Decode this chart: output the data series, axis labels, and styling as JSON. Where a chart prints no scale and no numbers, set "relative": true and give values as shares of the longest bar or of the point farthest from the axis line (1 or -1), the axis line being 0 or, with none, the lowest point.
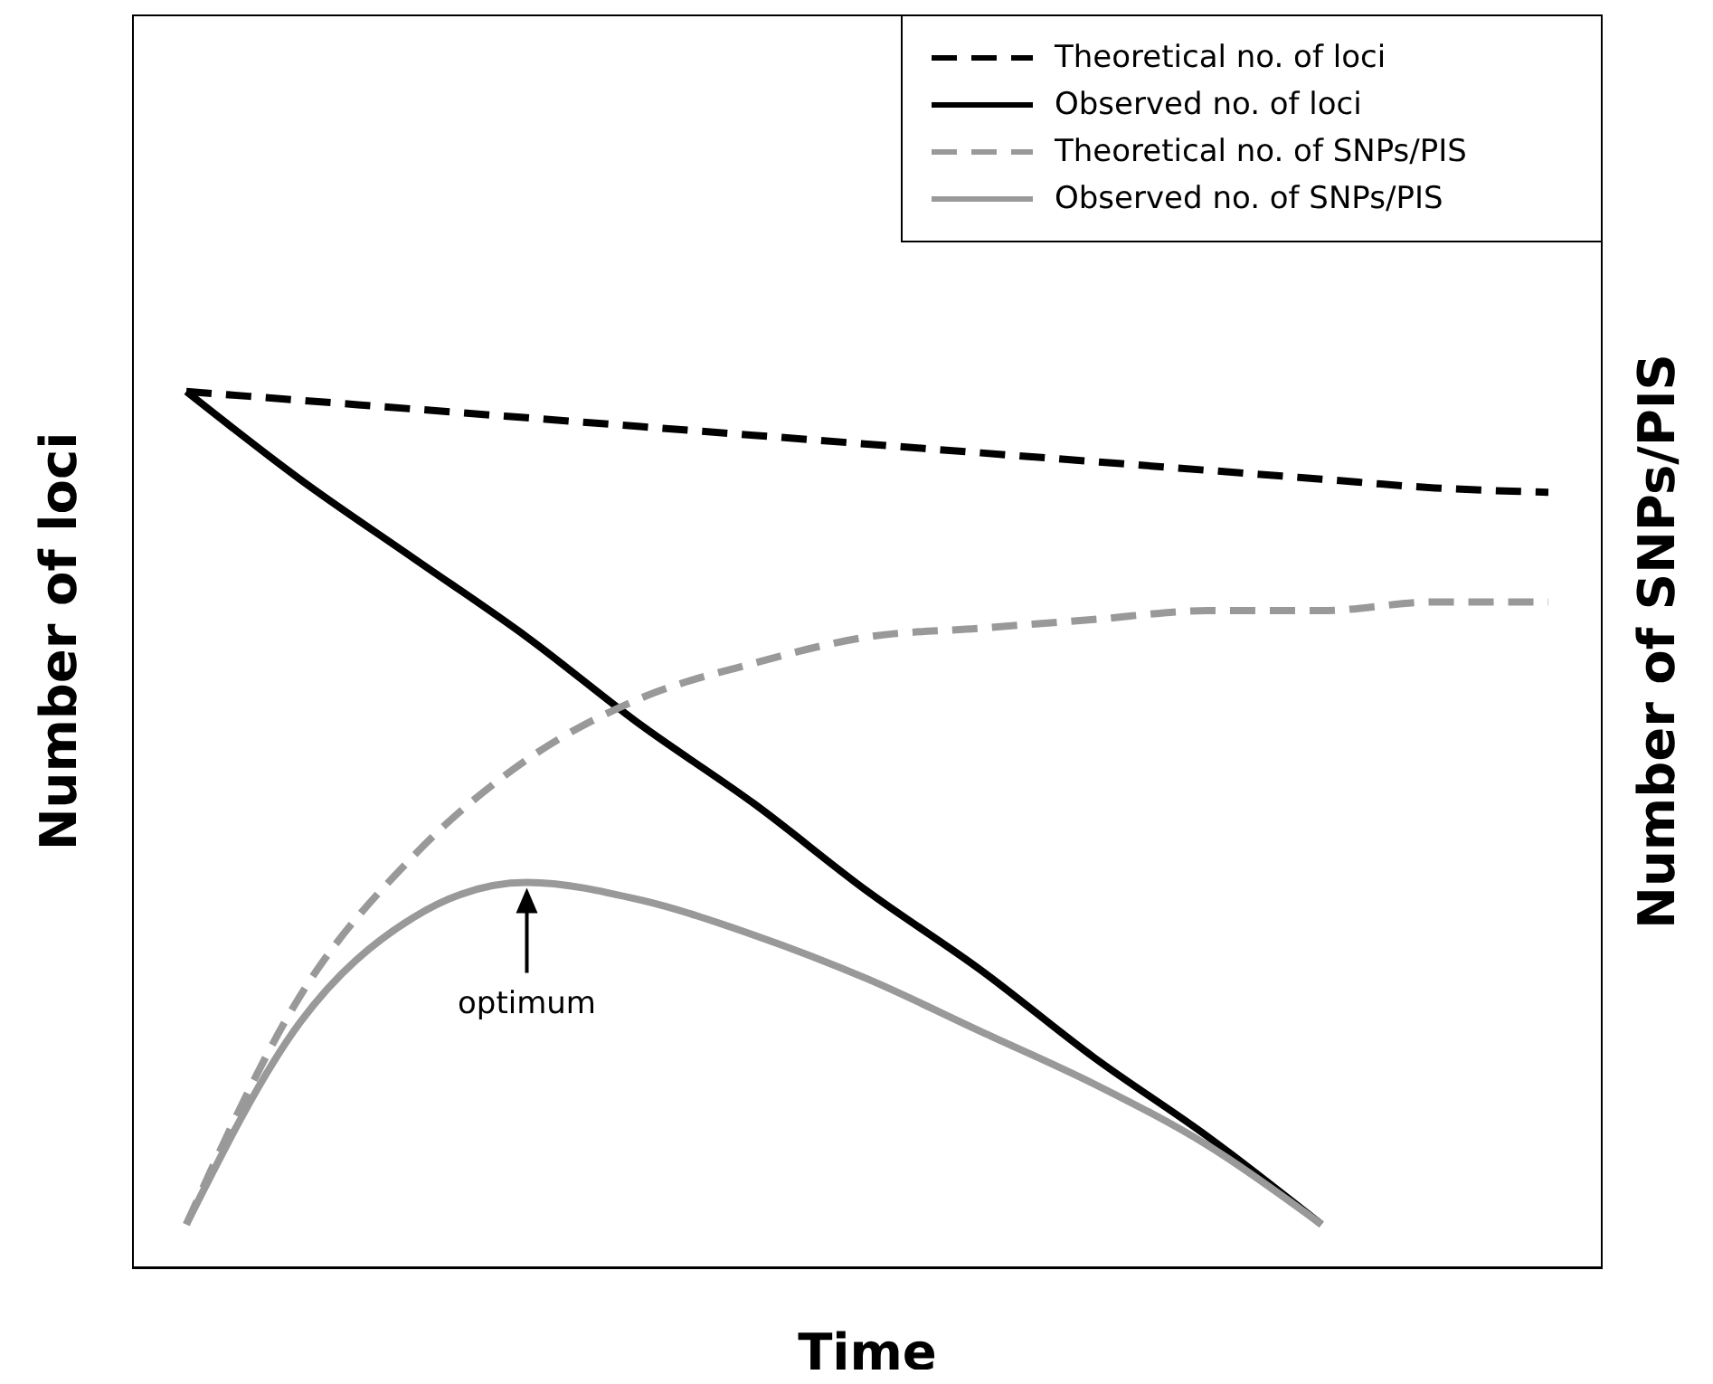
{
  "chart_data": {
    "type": "line",
    "relative": true,
    "xlabel": "Time",
    "ylabel": "Number of loci",
    "y2label": "Number of SNPs/PIS",
    "categories": [
      null,
      null,
      null,
      null,
      null,
      null,
      null,
      null,
      null,
      null,
      null,
      null,
      null
    ],
    "legend": "top right",
    "marker": "none",
    "annotations": [
      "optimum"
    ],
    "series": [
      {
        "name": "Theoretical no. of loci",
        "color": "#000000",
        "line_style": "dashed",
        "values": [
          1,
          0.99,
          0.98,
          0.97,
          0.96,
          0.95,
          0.94,
          0.93,
          0.92,
          0.91,
          0.9,
          0.89,
          0.885
        ]
      },
      {
        "name": "Observed no. of loci",
        "color": "#000000",
        "line_style": "solid",
        "values": [
          1,
          0.9,
          0.81,
          0.72,
          0.62,
          0.53,
          0.43,
          0.34,
          0.24,
          0.15,
          0.05,
          null,
          null
        ]
      },
      {
        "name": "Theoretical no. of SNPs/PIS",
        "color": "#999999",
        "line_style": "dashed",
        "values": [
          0.05,
          0.31,
          0.47,
          0.58,
          0.65,
          0.69,
          0.72,
          0.73,
          0.74,
          0.75,
          0.75,
          0.76,
          0.76
        ]
      },
      {
        "name": "Observed no. of SNPs/PIS",
        "color": "#999999",
        "line_style": "solid",
        "values": [
          0.05,
          0.28,
          0.4,
          0.44,
          0.42,
          0.38,
          0.33,
          0.27,
          0.21,
          0.14,
          0.05,
          null,
          null
        ]
      }
    ]
  }
}
